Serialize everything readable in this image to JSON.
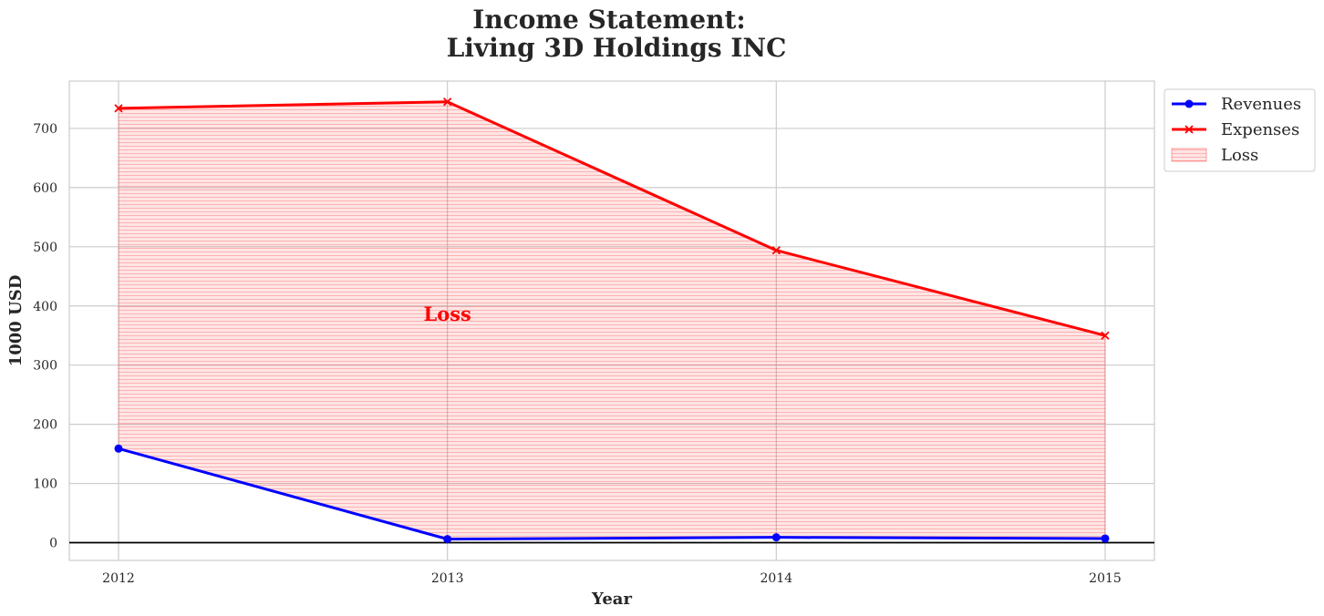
{
  "chart_data": {
    "type": "line",
    "title": "Income Statement:",
    "subtitle": "Living 3D Holdings INC",
    "xlabel": "Year",
    "ylabel": "1000 USD",
    "categories": [
      "2012",
      "2013",
      "2014",
      "2015"
    ],
    "ylim": [
      -30,
      780
    ],
    "yticks": [
      0,
      100,
      200,
      300,
      400,
      500,
      600,
      700
    ],
    "grid": true,
    "legend_position": "outside-top-right",
    "series": [
      {
        "name": "Revenues",
        "values": [
          159,
          6,
          9,
          7
        ],
        "color": "#0000ff",
        "marker": "circle"
      },
      {
        "name": "Expenses",
        "values": [
          734,
          745,
          494,
          350
        ],
        "color": "#ff0000",
        "marker": "x"
      }
    ],
    "fill": {
      "name": "Loss",
      "between": [
        "Revenues",
        "Expenses"
      ],
      "color": "#ff0000",
      "hatch": "horizontal"
    },
    "annotations": [
      {
        "text": "Loss",
        "x": "2013",
        "y": 375,
        "color": "#ff0000"
      }
    ],
    "zero_line": true
  }
}
